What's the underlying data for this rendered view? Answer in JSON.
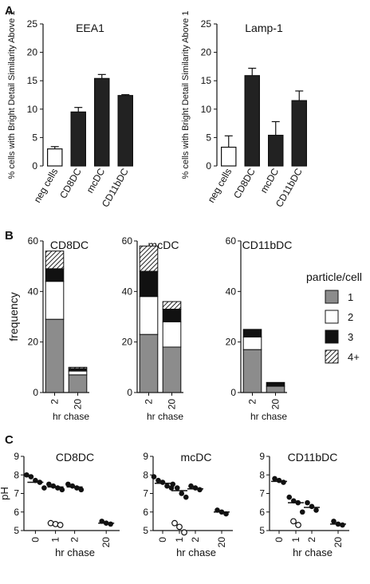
{
  "panel_labels": {
    "A": "A",
    "B": "B",
    "C": "C"
  },
  "chart_data": [
    {
      "type": "bar",
      "panel": "A",
      "title": "EEA1",
      "ylabel": "% cells with Bright Detail Similarity Above 1",
      "xlabel": "",
      "ylim": [
        0,
        25
      ],
      "yticks": [
        0,
        5,
        10,
        15,
        20,
        25
      ],
      "categories": [
        "neg cells",
        "CD8DC",
        "mcDC",
        "CD11bDC"
      ],
      "values": [
        3.0,
        9.5,
        15.4,
        12.4
      ],
      "errors": [
        0.4,
        0.8,
        0.7,
        0.15
      ],
      "fills": [
        "#ffffff",
        "#222222",
        "#222222",
        "#222222"
      ]
    },
    {
      "type": "bar",
      "panel": "A",
      "title": "Lamp-1",
      "ylabel": "% cells with Bright Detail Similarity Above 1",
      "xlabel": "",
      "ylim": [
        0,
        25
      ],
      "yticks": [
        0,
        5,
        10,
        15,
        20,
        25
      ],
      "categories": [
        "neg cells",
        "CD8DC",
        "mcDC",
        "CD11bDC"
      ],
      "values": [
        3.3,
        15.9,
        5.4,
        11.5
      ],
      "errors": [
        2.0,
        1.3,
        2.4,
        1.7
      ],
      "fills": [
        "#ffffff",
        "#222222",
        "#222222",
        "#222222"
      ]
    },
    {
      "type": "bar",
      "stacked": true,
      "panel": "B",
      "title": "CD8DC",
      "ylabel": "frequency",
      "xlabel": "hr chase",
      "ylim": [
        0,
        60
      ],
      "yticks": [
        0,
        20,
        40,
        60
      ],
      "categories": [
        "2",
        "20"
      ],
      "series": [
        {
          "name": "1",
          "values": [
            29,
            7
          ]
        },
        {
          "name": "2",
          "values": [
            15,
            1.5
          ]
        },
        {
          "name": "3",
          "values": [
            5,
            1
          ]
        },
        {
          "name": "4+",
          "values": [
            7,
            0.5
          ]
        }
      ]
    },
    {
      "type": "bar",
      "stacked": true,
      "panel": "B",
      "title": "mcDC",
      "ylabel": "",
      "xlabel": "",
      "ylim": [
        0,
        60
      ],
      "yticks": [
        0,
        20,
        40,
        60
      ],
      "categories": [
        "2",
        "20"
      ],
      "series": [
        {
          "name": "1",
          "values": [
            23,
            18
          ]
        },
        {
          "name": "2",
          "values": [
            15,
            10
          ]
        },
        {
          "name": "3",
          "values": [
            10,
            5
          ]
        },
        {
          "name": "4+",
          "values": [
            10,
            3
          ]
        }
      ]
    },
    {
      "type": "bar",
      "stacked": true,
      "panel": "B",
      "title": "CD11bDC",
      "ylabel": "",
      "xlabel": "hr chase",
      "ylim": [
        0,
        60
      ],
      "yticks": [
        0,
        20,
        40,
        60
      ],
      "categories": [
        "2",
        "20"
      ],
      "series": [
        {
          "name": "1",
          "values": [
            17,
            2.5
          ]
        },
        {
          "name": "2",
          "values": [
            5,
            0
          ]
        },
        {
          "name": "3",
          "values": [
            3,
            1.5
          ]
        },
        {
          "name": "4+",
          "values": [
            0,
            0
          ]
        }
      ]
    },
    {
      "type": "scatter",
      "panel": "C",
      "title": "CD8DC",
      "ylabel": "pH",
      "xlabel": "hr chase",
      "ylim": [
        5,
        9
      ],
      "yticks": [
        5,
        6,
        7,
        8,
        9
      ],
      "xticks": [
        "0",
        "1",
        "2",
        "20"
      ],
      "groups": [
        {
          "x": "0",
          "filled": [
            8.0,
            7.9,
            7.7,
            7.6,
            7.3
          ],
          "open": [],
          "median": 7.6
        },
        {
          "x": "1",
          "filled": [
            7.5,
            7.4,
            7.3,
            7.2
          ],
          "open": [
            5.4,
            5.35,
            5.3
          ],
          "median": 7.35
        },
        {
          "x": "2",
          "filled": [
            7.5,
            7.4,
            7.3,
            7.2
          ],
          "open": [],
          "median": 7.35
        },
        {
          "x": "20",
          "filled": [
            5.5,
            5.4,
            5.35
          ],
          "open": [],
          "median": 5.4
        }
      ]
    },
    {
      "type": "scatter",
      "panel": "C",
      "title": "mcDC",
      "ylabel": "",
      "xlabel": "hr chase",
      "ylim": [
        5,
        9
      ],
      "yticks": [
        5,
        6,
        7,
        8,
        9
      ],
      "xticks": [
        "0",
        "1",
        "2",
        "20"
      ],
      "groups": [
        {
          "x": "0",
          "filled": [
            7.9,
            7.7,
            7.6,
            7.4,
            7.3
          ],
          "open": [],
          "median": 7.55
        },
        {
          "x": "1",
          "filled": [
            7.5,
            7.3,
            7.0,
            6.8
          ],
          "open": [
            5.4,
            5.2,
            4.9
          ],
          "median": 7.15
        },
        {
          "x": "2",
          "filled": [
            7.4,
            7.3,
            7.2
          ],
          "open": [],
          "median": 7.25
        },
        {
          "x": "20",
          "filled": [
            6.1,
            6.0,
            5.9
          ],
          "open": [],
          "median": 6.0
        }
      ]
    },
    {
      "type": "scatter",
      "panel": "C",
      "title": "CD11bDC",
      "ylabel": "",
      "xlabel": "hr chase",
      "ylim": [
        5,
        9
      ],
      "yticks": [
        5,
        6,
        7,
        8,
        9
      ],
      "xticks": [
        "0",
        "1",
        "2",
        "20"
      ],
      "groups": [
        {
          "x": "0",
          "filled": [
            7.8,
            7.7,
            7.6
          ],
          "open": [],
          "median": 7.65
        },
        {
          "x": "1",
          "filled": [
            6.8,
            6.6,
            6.5,
            6.0
          ],
          "open": [
            5.5,
            5.3
          ],
          "median": 6.5
        },
        {
          "x": "2",
          "filled": [
            6.5,
            6.3,
            6.1
          ],
          "open": [],
          "median": 6.25
        },
        {
          "x": "20",
          "filled": [
            5.5,
            5.35,
            5.3
          ],
          "open": [],
          "median": 5.35
        }
      ]
    }
  ],
  "legend": {
    "title": "particle/cell",
    "entries": [
      {
        "label": "1",
        "fill": "#8c8c8c"
      },
      {
        "label": "2",
        "fill": "#ffffff"
      },
      {
        "label": "3",
        "fill": "#111111"
      },
      {
        "label": "4+",
        "fill": "hatch"
      }
    ]
  },
  "colors": {
    "bar_dark": "#222222",
    "stack_1": "#8c8c8c",
    "stack_2": "#ffffff",
    "stack_3": "#111111"
  }
}
